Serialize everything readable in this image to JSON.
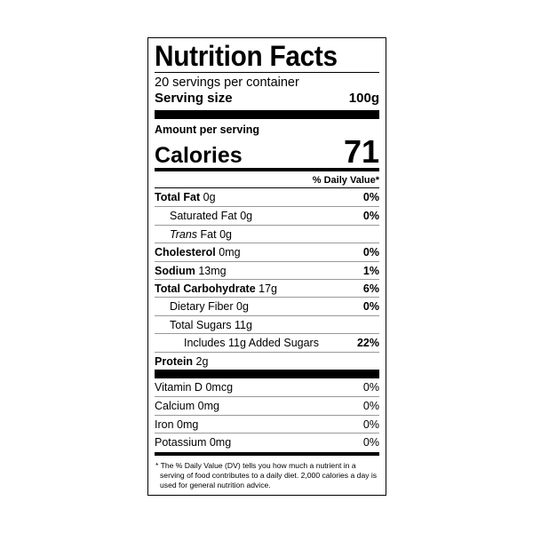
{
  "title": "Nutrition Facts",
  "servings": "20 servings per container",
  "serving_size": {
    "label": "Serving size",
    "value": "100g"
  },
  "amount_per_serving": "Amount per serving",
  "calories": {
    "label": "Calories",
    "value": "71"
  },
  "dv_header": "% Daily Value*",
  "nutrients": [
    {
      "name": "Total Fat",
      "amount": "0g",
      "dv": "0%"
    },
    {
      "name": "Saturated Fat",
      "amount": "0g",
      "dv": "0%"
    },
    {
      "name_italic": "Trans",
      "name": "Fat",
      "amount": "0g"
    },
    {
      "name": "Cholesterol",
      "amount": "0mg",
      "dv": "0%"
    },
    {
      "name": "Sodium",
      "amount": "13mg",
      "dv": "1%"
    },
    {
      "name": "Total Carbohydrate",
      "amount": "17g",
      "dv": "6%"
    },
    {
      "name": "Dietary Fiber",
      "amount": "0g",
      "dv": "0%"
    },
    {
      "name": "Total Sugars",
      "amount": "11g"
    },
    {
      "name": "Includes 11g Added Sugars",
      "dv": "22%"
    },
    {
      "name": "Protein",
      "amount": "2g"
    }
  ],
  "vitamins": [
    {
      "name": "Vitamin D",
      "amount": "0mcg",
      "dv": "0%"
    },
    {
      "name": "Calcium",
      "amount": "0mg",
      "dv": "0%"
    },
    {
      "name": "Iron",
      "amount": "0mg",
      "dv": "0%"
    },
    {
      "name": "Potassium",
      "amount": "0mg",
      "dv": "0%"
    }
  ],
  "footnote": "* The % Daily Value (DV) tells you how much a nutrient in a serving of food contributes to a daily diet. 2,000 calories a day is used for general nutrition advice."
}
